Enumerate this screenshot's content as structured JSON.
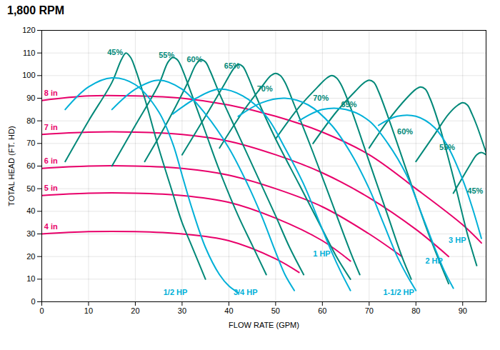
{
  "chart_data": {
    "type": "line",
    "title": "1,800 RPM",
    "x_label": "FLOW RATE (GPM)",
    "y_label": "TOTAL HEAD (FT. HD)",
    "xlim": [
      0,
      95
    ],
    "ylim": [
      0,
      120
    ],
    "xticks": [
      0,
      10,
      20,
      30,
      40,
      50,
      60,
      70,
      80,
      90
    ],
    "yticks": [
      0,
      10,
      20,
      30,
      40,
      50,
      60,
      70,
      80,
      90,
      100,
      110,
      120
    ],
    "grid": true,
    "series": [
      {
        "color": "#e8006a",
        "x": [
          0,
          10,
          20,
          30,
          40,
          50,
          60,
          70,
          80,
          90,
          94
        ],
        "values": [
          89,
          91,
          91,
          90,
          87,
          82,
          75,
          65,
          50,
          34,
          26
        ]
      },
      {
        "color": "#e8006a",
        "x": [
          0,
          10,
          20,
          30,
          40,
          50,
          60,
          70,
          80,
          87
        ],
        "values": [
          74,
          75,
          75,
          74,
          71,
          65,
          57,
          46,
          32,
          20
        ]
      },
      {
        "color": "#e8006a",
        "x": [
          0,
          10,
          20,
          30,
          40,
          50,
          60,
          70,
          77
        ],
        "values": [
          59,
          60,
          60,
          59,
          56,
          50,
          42,
          30,
          20
        ]
      },
      {
        "color": "#e8006a",
        "x": [
          0,
          10,
          20,
          30,
          40,
          50,
          60,
          66
        ],
        "values": [
          47,
          48,
          48,
          47,
          44,
          37,
          27,
          18
        ]
      },
      {
        "color": "#e8006a",
        "x": [
          0,
          10,
          20,
          30,
          40,
          50,
          55
        ],
        "values": [
          30,
          31,
          31,
          30,
          27,
          19,
          13
        ]
      },
      {
        "color": "#008878",
        "x": [
          5,
          10,
          15,
          17,
          18,
          19,
          20,
          22,
          25,
          28,
          30,
          32,
          35
        ],
        "values": [
          62,
          80,
          97,
          107,
          110,
          108,
          103,
          90,
          68,
          48,
          35,
          25,
          10
        ]
      },
      {
        "color": "#008878",
        "x": [
          15,
          20,
          25,
          27,
          28,
          29,
          30,
          32,
          35,
          38,
          42,
          45,
          48
        ],
        "values": [
          60,
          78,
          96,
          106,
          108,
          107,
          103,
          92,
          75,
          58,
          38,
          25,
          12
        ]
      },
      {
        "color": "#008878",
        "x": [
          22,
          27,
          31,
          33,
          34,
          35,
          36,
          38,
          42,
          46,
          50,
          53,
          56
        ],
        "values": [
          62,
          80,
          96,
          105,
          107,
          106,
          102,
          92,
          74,
          56,
          38,
          24,
          12
        ]
      },
      {
        "color": "#008878",
        "x": [
          30,
          35,
          39,
          41,
          42,
          43,
          44,
          46,
          50,
          55,
          60,
          63,
          66
        ],
        "values": [
          65,
          82,
          96,
          103,
          105,
          104,
          100,
          90,
          72,
          52,
          32,
          20,
          10
        ]
      },
      {
        "color": "#008878",
        "x": [
          38,
          43,
          47,
          49,
          50,
          51,
          52,
          54,
          58,
          62,
          66,
          68
        ],
        "values": [
          68,
          84,
          95,
          100,
          101,
          100,
          97,
          87,
          66,
          44,
          22,
          12
        ]
      },
      {
        "color": "#008878",
        "x": [
          50,
          55,
          59,
          61,
          62,
          63,
          64,
          66,
          70,
          74,
          77,
          79
        ],
        "values": [
          72,
          86,
          95,
          99,
          100,
          99,
          96,
          86,
          62,
          38,
          20,
          10
        ]
      },
      {
        "color": "#008878",
        "x": [
          58,
          63,
          67,
          69,
          70,
          71,
          72,
          74,
          78,
          82,
          85,
          87
        ],
        "values": [
          70,
          84,
          93,
          97,
          98,
          97,
          93,
          82,
          58,
          34,
          18,
          8
        ]
      },
      {
        "color": "#008878",
        "x": [
          70,
          74,
          78,
          80,
          81,
          82,
          83,
          85,
          88,
          91,
          93
        ],
        "values": [
          68,
          80,
          90,
          94,
          95,
          94,
          90,
          78,
          55,
          30,
          16
        ]
      },
      {
        "color": "#008878",
        "x": [
          80,
          84,
          87,
          89,
          90,
          91,
          92,
          93,
          95
        ],
        "values": [
          62,
          74,
          83,
          87,
          88,
          87,
          83,
          78,
          66
        ]
      },
      {
        "color": "#008878",
        "x": [
          88,
          90,
          92,
          93,
          94,
          95
        ],
        "values": [
          48,
          55,
          62,
          65,
          66,
          65
        ]
      },
      {
        "color": "#00b0d8",
        "x": [
          5,
          10,
          15,
          20,
          25,
          28,
          30,
          32,
          35,
          38,
          40,
          42
        ],
        "values": [
          85,
          95,
          99,
          96,
          84,
          70,
          56,
          42,
          24,
          12,
          7,
          4
        ]
      },
      {
        "color": "#00b0d8",
        "x": [
          15,
          20,
          25,
          30,
          35,
          40,
          44,
          47,
          50,
          52,
          54
        ],
        "values": [
          85,
          94,
          98,
          94,
          83,
          68,
          52,
          38,
          22,
          12,
          5
        ]
      },
      {
        "color": "#00b0d8",
        "x": [
          28,
          33,
          38,
          43,
          48,
          52,
          56,
          59,
          62,
          64,
          66
        ],
        "values": [
          83,
          90,
          94,
          91,
          82,
          68,
          52,
          37,
          22,
          13,
          5
        ]
      },
      {
        "color": "#00b0d8",
        "x": [
          42,
          47,
          52,
          57,
          62,
          66,
          70,
          73,
          76,
          78,
          80
        ],
        "values": [
          82,
          88,
          90,
          87,
          78,
          66,
          50,
          35,
          20,
          12,
          5
        ]
      },
      {
        "color": "#00b0d8",
        "x": [
          55,
          60,
          65,
          70,
          74,
          78,
          81,
          84,
          86,
          88
        ],
        "values": [
          80,
          85,
          85,
          80,
          70,
          56,
          40,
          24,
          14,
          6
        ]
      },
      {
        "color": "#00b0d8",
        "x": [
          72,
          76,
          80,
          84,
          87,
          90,
          92,
          94
        ],
        "values": [
          78,
          82,
          82,
          77,
          68,
          54,
          42,
          28
        ]
      }
    ],
    "annotations": [
      {
        "text": "8 in",
        "x": 0.5,
        "y": 91,
        "color": "#e8006a"
      },
      {
        "text": "7 in",
        "x": 0.5,
        "y": 76,
        "color": "#e8006a"
      },
      {
        "text": "6 in",
        "x": 0.5,
        "y": 61,
        "color": "#e8006a"
      },
      {
        "text": "5 in",
        "x": 0.5,
        "y": 49,
        "color": "#e8006a"
      },
      {
        "text": "4 in",
        "x": 0.5,
        "y": 32,
        "color": "#e8006a"
      },
      {
        "text": "45%",
        "x": 14,
        "y": 109,
        "color": "#008878"
      },
      {
        "text": "55%",
        "x": 25,
        "y": 108,
        "color": "#008878"
      },
      {
        "text": "60%",
        "x": 31,
        "y": 106,
        "color": "#008878"
      },
      {
        "text": "65%",
        "x": 39,
        "y": 103,
        "color": "#008878"
      },
      {
        "text": "70%",
        "x": 46,
        "y": 93,
        "color": "#008878"
      },
      {
        "text": "70%",
        "x": 58,
        "y": 89,
        "color": "#008878"
      },
      {
        "text": "65%",
        "x": 64,
        "y": 86,
        "color": "#008878"
      },
      {
        "text": "60%",
        "x": 76,
        "y": 74,
        "color": "#008878"
      },
      {
        "text": "55%",
        "x": 85,
        "y": 67,
        "color": "#008878"
      },
      {
        "text": "45%",
        "x": 91,
        "y": 48,
        "color": "#008878"
      },
      {
        "text": "1/2 HP",
        "x": 26,
        "y": 3,
        "color": "#00b0d8"
      },
      {
        "text": "3/4 HP",
        "x": 41,
        "y": 3,
        "color": "#00b0d8"
      },
      {
        "text": "1 HP",
        "x": 58,
        "y": 20,
        "color": "#00b0d8"
      },
      {
        "text": "1-1/2 HP",
        "x": 73,
        "y": 3,
        "color": "#00b0d8"
      },
      {
        "text": "2 HP",
        "x": 82,
        "y": 17,
        "color": "#00b0d8"
      },
      {
        "text": "3 HP",
        "x": 87,
        "y": 26,
        "color": "#00b0d8"
      }
    ]
  }
}
